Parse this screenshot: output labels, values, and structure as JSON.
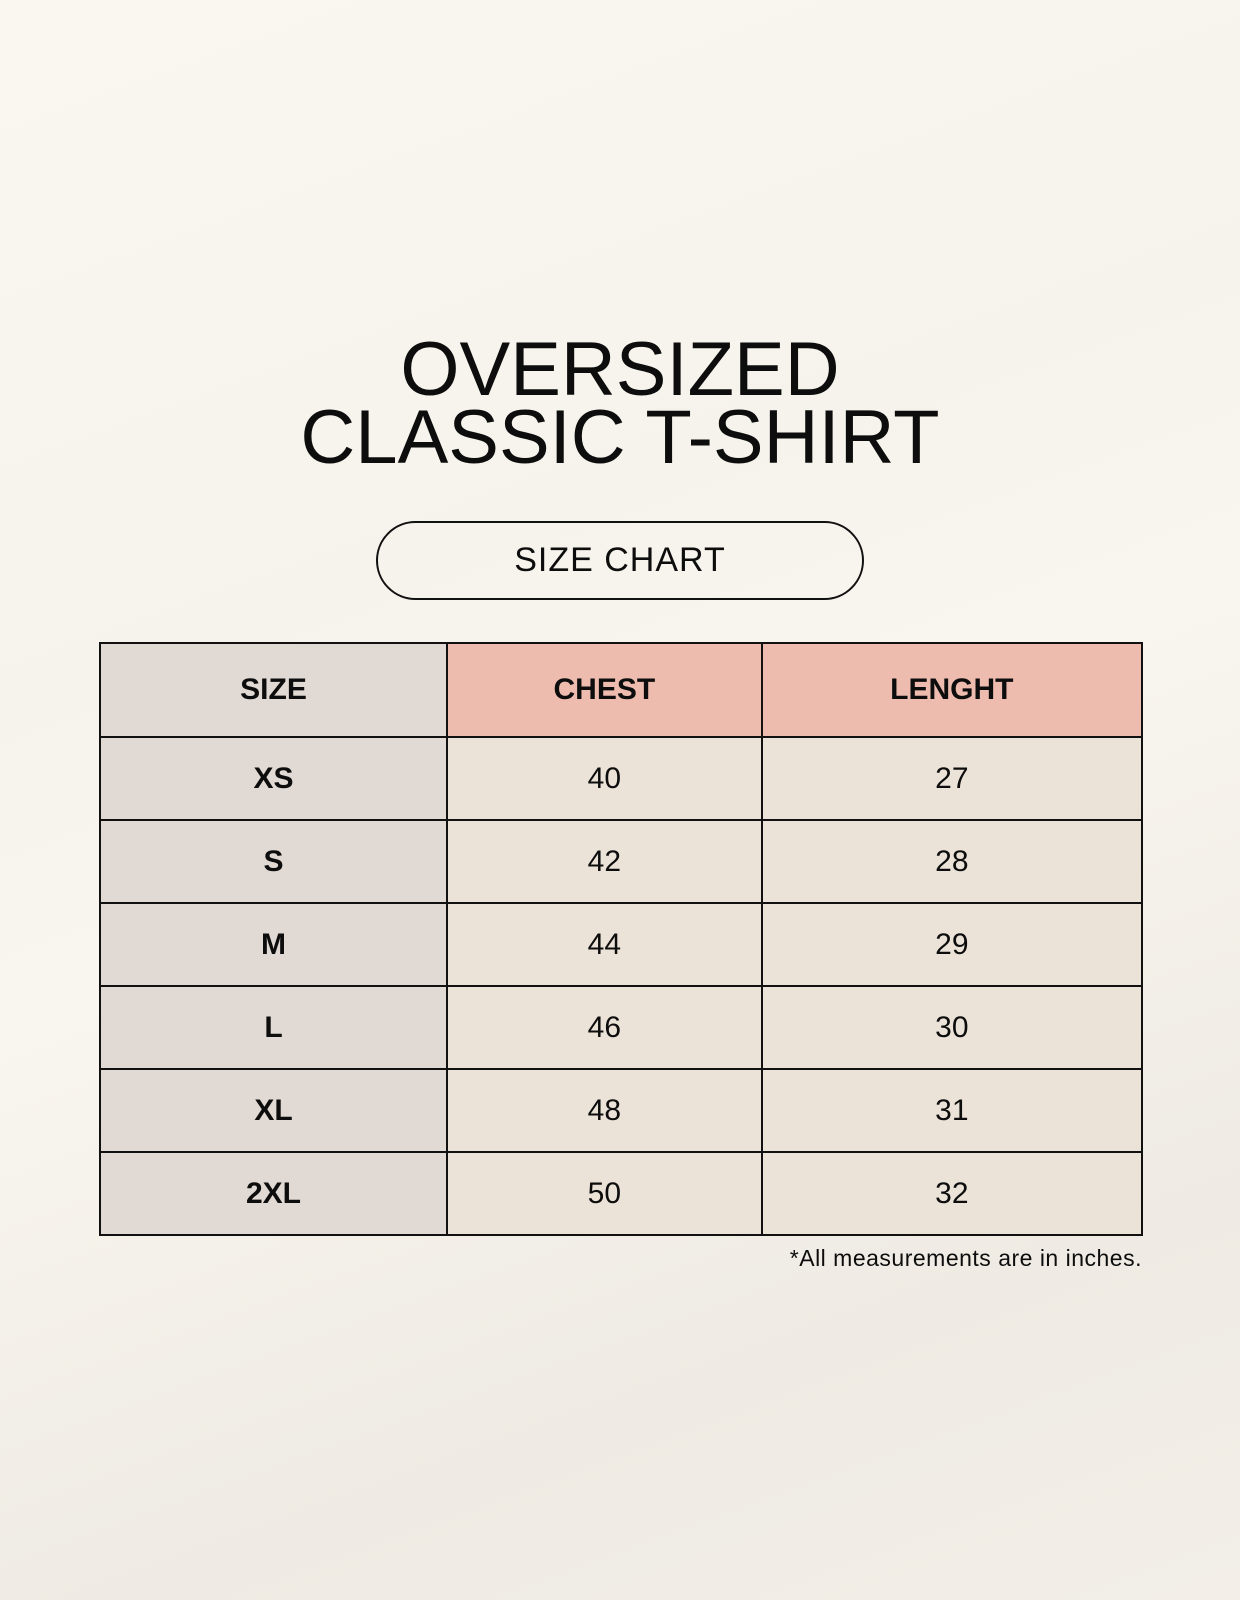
{
  "title": {
    "line1": "OVERSIZED",
    "line2": "CLASSIC T-SHIRT"
  },
  "badge": "SIZE CHART",
  "table": {
    "headers": [
      "SIZE",
      "CHEST",
      "LENGHT"
    ],
    "rows": [
      [
        "XS",
        "40",
        "27"
      ],
      [
        "S",
        "42",
        "28"
      ],
      [
        "M",
        "44",
        "29"
      ],
      [
        "L",
        "46",
        "30"
      ],
      [
        "XL",
        "48",
        "31"
      ],
      [
        "2XL",
        "50",
        "32"
      ]
    ]
  },
  "footnote": "*All measurements are in inches.",
  "colors": {
    "size_column": "#e1d9d3",
    "header_accent": "#eebcaf",
    "value_cells": "#ebe3d8"
  }
}
